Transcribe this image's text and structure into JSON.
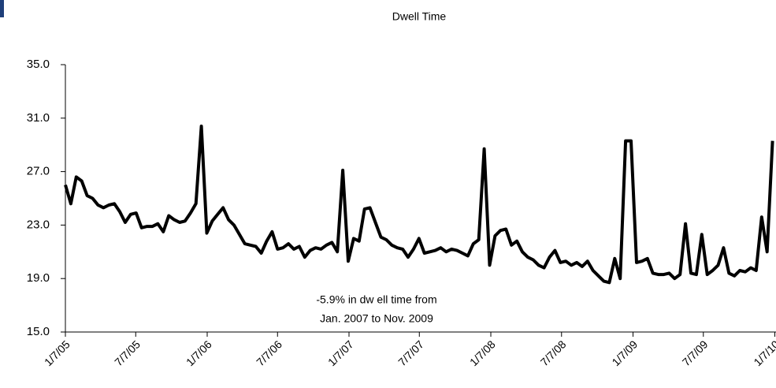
{
  "chart_data": {
    "type": "line",
    "title": "Dwell Time",
    "annotation": [
      "-5.9% in dw ell time from",
      "Jan. 2007 to Nov. 2009"
    ],
    "x": [
      "1/7/05",
      "1/21/05",
      "2/4/05",
      "2/18/05",
      "3/4/05",
      "3/18/05",
      "4/1/05",
      "4/15/05",
      "4/29/05",
      "5/13/05",
      "5/27/05",
      "6/10/05",
      "6/24/05",
      "7/8/05",
      "7/22/05",
      "8/5/05",
      "8/19/05",
      "9/2/05",
      "9/16/05",
      "9/30/05",
      "10/14/05",
      "10/28/05",
      "11/11/05",
      "11/25/05",
      "12/9/05",
      "12/23/05",
      "1/6/06",
      "1/20/06",
      "2/3/06",
      "2/17/06",
      "3/3/06",
      "3/17/06",
      "3/31/06",
      "4/14/06",
      "4/28/06",
      "5/12/06",
      "5/26/06",
      "6/9/06",
      "6/23/06",
      "7/7/06",
      "7/21/06",
      "8/4/06",
      "8/18/06",
      "9/1/06",
      "9/15/06",
      "9/29/06",
      "10/13/06",
      "10/27/06",
      "11/10/06",
      "11/24/06",
      "12/8/06",
      "12/22/06",
      "1/5/07",
      "1/19/07",
      "2/2/07",
      "2/16/07",
      "3/2/07",
      "3/16/07",
      "3/30/07",
      "4/13/07",
      "4/27/07",
      "5/11/07",
      "5/25/07",
      "6/8/07",
      "6/22/07",
      "7/6/07",
      "7/20/07",
      "8/3/07",
      "8/17/07",
      "8/31/07",
      "9/14/07",
      "9/28/07",
      "10/12/07",
      "10/26/07",
      "11/9/07",
      "11/23/07",
      "12/7/07",
      "12/21/07",
      "1/4/08",
      "1/18/08",
      "2/1/08",
      "2/15/08",
      "2/29/08",
      "3/14/08",
      "3/28/08",
      "4/11/08",
      "4/25/08",
      "5/9/08",
      "5/23/08",
      "6/6/08",
      "6/20/08",
      "7/4/08",
      "7/18/08",
      "8/1/08",
      "8/15/08",
      "8/29/08",
      "9/12/08",
      "9/26/08",
      "10/10/08",
      "10/24/08",
      "11/7/08",
      "11/21/08",
      "12/5/08",
      "12/19/08",
      "1/2/09",
      "1/16/09",
      "1/30/09",
      "2/13/09",
      "2/27/09",
      "3/13/09",
      "3/27/09",
      "4/10/09",
      "4/24/09",
      "5/8/09",
      "5/22/09",
      "6/5/09",
      "6/19/09",
      "7/3/09",
      "7/17/09",
      "7/31/09",
      "8/14/09",
      "8/28/09",
      "9/11/09",
      "9/25/09",
      "10/9/09",
      "10/23/09",
      "11/6/09",
      "11/20/09",
      "12/4/09",
      "12/18/09",
      "1/1/10"
    ],
    "series": [
      {
        "name": "Dwell Time",
        "color": "#000000",
        "values": [
          26.0,
          24.6,
          26.6,
          26.3,
          25.2,
          25.0,
          24.5,
          24.3,
          24.5,
          24.6,
          24.0,
          23.2,
          23.8,
          23.9,
          22.8,
          22.9,
          22.9,
          23.1,
          22.5,
          23.7,
          23.4,
          23.2,
          23.3,
          23.9,
          24.6,
          30.4,
          22.4,
          23.3,
          23.8,
          24.3,
          23.4,
          23.0,
          22.3,
          21.6,
          21.5,
          21.4,
          20.9,
          21.8,
          22.5,
          21.2,
          21.3,
          21.6,
          21.2,
          21.4,
          20.6,
          21.1,
          21.3,
          21.2,
          21.5,
          21.7,
          21.0,
          27.1,
          20.3,
          22.0,
          21.8,
          24.2,
          24.3,
          23.2,
          22.1,
          21.9,
          21.5,
          21.3,
          21.2,
          20.6,
          21.2,
          22.0,
          20.9,
          21.0,
          21.1,
          21.3,
          21.0,
          21.2,
          21.1,
          20.9,
          20.7,
          21.6,
          21.9,
          28.7,
          20.0,
          22.2,
          22.6,
          22.7,
          21.5,
          21.8,
          21.0,
          20.6,
          20.4,
          20.0,
          19.8,
          20.6,
          21.1,
          20.2,
          20.3,
          20.0,
          20.2,
          19.9,
          20.3,
          19.6,
          19.2,
          18.8,
          18.7,
          20.5,
          19.0,
          29.3,
          29.3,
          20.2,
          20.3,
          20.5,
          19.4,
          19.3,
          19.3,
          19.4,
          19.0,
          19.3,
          23.1,
          19.4,
          19.3,
          22.3,
          19.3,
          19.6,
          20.0,
          21.3,
          19.4,
          19.2,
          19.6,
          19.5,
          19.8,
          19.6,
          23.6,
          21.0,
          29.3
        ]
      }
    ],
    "xlim": [
      "1/7/05",
      "1/10/10"
    ],
    "xticks": [
      "1/7/05",
      "7/7/05",
      "1/7/06",
      "7/7/06",
      "1/7/07",
      "7/7/07",
      "1/7/08",
      "7/7/08",
      "1/7/09",
      "7/7/09",
      "1/7/10"
    ],
    "ylim": [
      15,
      35
    ],
    "yticks": [
      {
        "value": 15,
        "label": "15.0"
      },
      {
        "value": 19,
        "label": "19.0"
      },
      {
        "value": 23,
        "label": "23.0"
      },
      {
        "value": 27,
        "label": "27.0"
      },
      {
        "value": 31,
        "label": "31.0"
      },
      {
        "value": 35,
        "label": "35.0"
      }
    ]
  }
}
